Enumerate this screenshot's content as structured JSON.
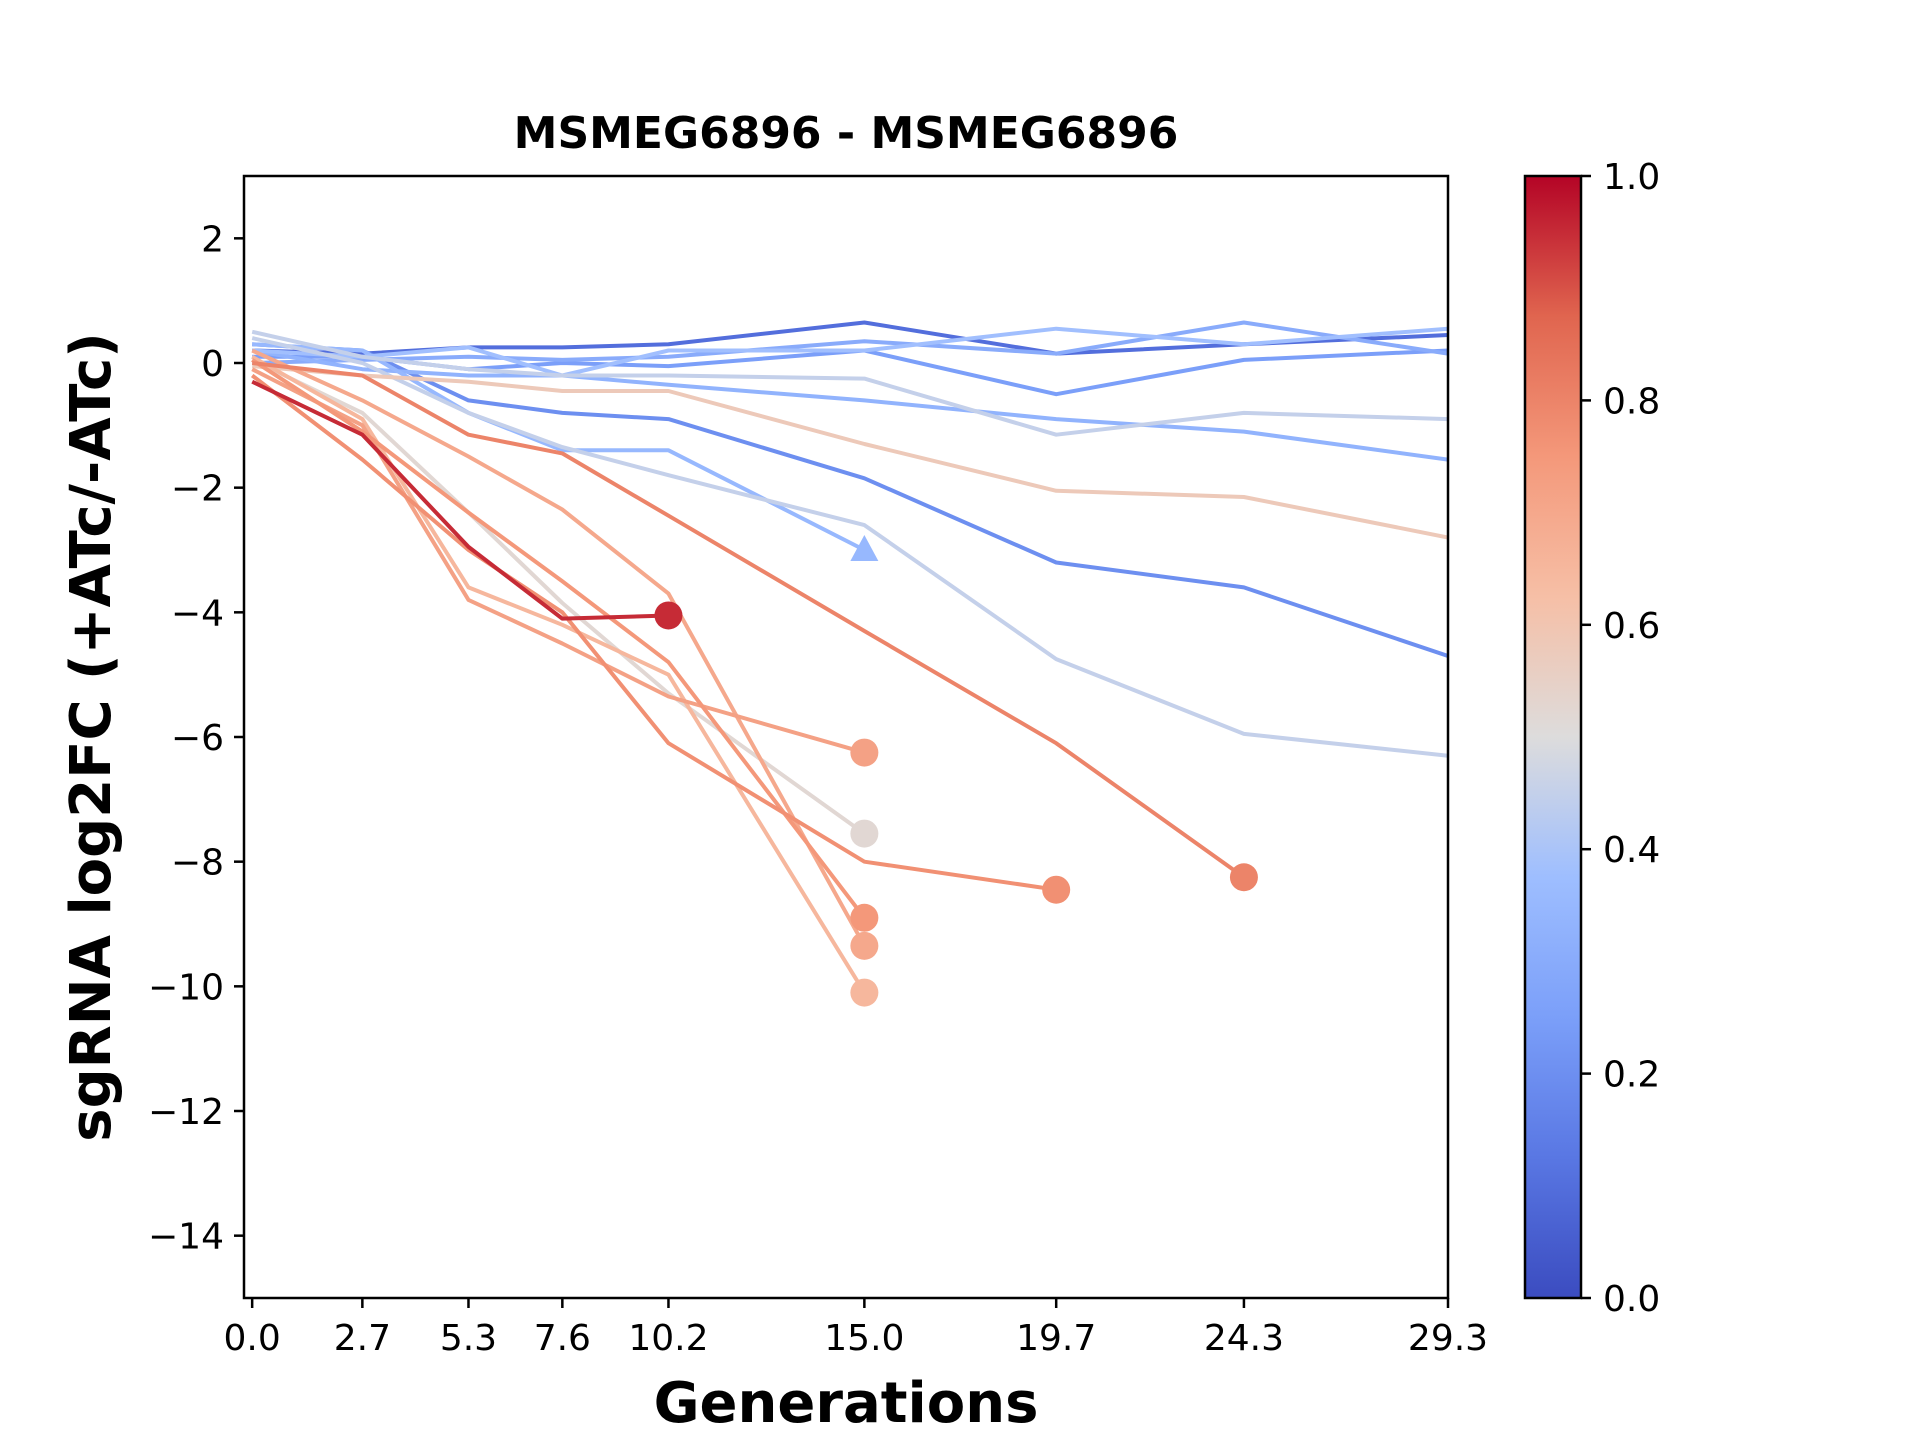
{
  "chart_data": {
    "type": "line",
    "title": "MSMEG6896 - MSMEG6896",
    "xlabel": "Generations",
    "ylabel": "sgRNA log2FC (+ATc/-ATc)",
    "xlim": [
      -0.2,
      29.3
    ],
    "ylim": [
      -15,
      3
    ],
    "xticks": [
      "0.0",
      "2.7",
      "5.3",
      "7.6",
      "10.2",
      "15.0",
      "19.7",
      "24.3",
      "29.3"
    ],
    "yticks": [
      "2",
      "0",
      "−2",
      "−4",
      "−6",
      "−8",
      "−10",
      "−12",
      "−14"
    ],
    "ytick_values": [
      2,
      0,
      -2,
      -4,
      -6,
      -8,
      -10,
      -12,
      -14
    ],
    "grid": false,
    "legend": "none",
    "colorbar": {
      "colormap": "coolwarm",
      "range": [
        0,
        1
      ],
      "ticks": [
        "0.0",
        "0.2",
        "0.4",
        "0.6",
        "0.8",
        "1.0"
      ],
      "tick_values": [
        0,
        0.2,
        0.4,
        0.6,
        0.8,
        1.0
      ]
    },
    "series": [
      {
        "value": 0.1,
        "x": [
          0,
          2.7,
          5.3,
          7.6,
          10.2,
          15.0,
          19.7,
          24.3,
          29.3
        ],
        "y": [
          0.2,
          0.15,
          0.25,
          0.25,
          0.3,
          0.65,
          0.15,
          0.3,
          0.45
        ],
        "end_marker": "none"
      },
      {
        "value": 0.2,
        "x": [
          0,
          2.7,
          5.3,
          7.6,
          10.2,
          15.0,
          19.7,
          24.3,
          29.3
        ],
        "y": [
          0.3,
          0.2,
          -0.6,
          -0.8,
          -0.9,
          -1.85,
          -3.2,
          -3.6,
          -4.7
        ],
        "end_marker": "none"
      },
      {
        "value": 0.25,
        "x": [
          0,
          2.7,
          5.3,
          7.6,
          10.2,
          15.0,
          19.7,
          24.3,
          29.3
        ],
        "y": [
          0.1,
          0.1,
          -0.1,
          0.0,
          -0.05,
          0.2,
          -0.5,
          0.05,
          0.2
        ],
        "end_marker": "none"
      },
      {
        "value": 0.3,
        "x": [
          0,
          2.7,
          5.3,
          7.6,
          10.2,
          15.0,
          19.7,
          24.3,
          29.3
        ],
        "y": [
          0.0,
          0.05,
          0.1,
          0.05,
          0.1,
          0.35,
          0.15,
          0.65,
          0.15
        ],
        "end_marker": "none"
      },
      {
        "value": 0.33,
        "x": [
          0,
          2.7,
          5.3,
          7.6,
          10.2,
          15.0,
          19.7,
          24.3,
          29.3
        ],
        "y": [
          0.2,
          -0.1,
          -0.2,
          -0.2,
          -0.35,
          -0.6,
          -0.9,
          -1.1,
          -1.55
        ],
        "end_marker": "none"
      },
      {
        "value": 0.35,
        "x": [
          0,
          2.7,
          5.3,
          7.6,
          10.2,
          15.0
        ],
        "y": [
          0.3,
          0.2,
          -0.8,
          -1.4,
          -1.4,
          -3.0
        ],
        "end_marker": "triangle"
      },
      {
        "value": 0.38,
        "x": [
          0,
          2.7,
          5.3,
          7.6,
          10.2,
          15.0,
          19.7,
          24.3,
          29.3
        ],
        "y": [
          0.2,
          0.1,
          0.25,
          -0.2,
          0.2,
          0.2,
          0.55,
          0.3,
          0.55
        ],
        "end_marker": "none"
      },
      {
        "value": 0.45,
        "x": [
          0,
          2.7,
          5.3,
          7.6,
          10.2,
          15.0,
          19.7,
          24.3,
          29.3
        ],
        "y": [
          0.5,
          0.1,
          -0.1,
          -0.2,
          -0.2,
          -0.25,
          -1.15,
          -0.8,
          -0.9
        ],
        "end_marker": "none"
      },
      {
        "value": 0.45,
        "x": [
          0,
          2.7,
          5.3,
          7.6,
          10.2,
          15.0,
          19.7,
          24.3,
          29.3
        ],
        "y": [
          0.4,
          0.0,
          -0.8,
          -1.35,
          -1.8,
          -2.6,
          -4.75,
          -5.95,
          -6.3
        ],
        "end_marker": "none"
      },
      {
        "value": 0.58,
        "x": [
          0,
          2.7,
          5.3,
          7.6,
          10.2,
          15.0,
          19.7,
          24.3,
          29.3
        ],
        "y": [
          -0.05,
          -0.2,
          -0.3,
          -0.45,
          -0.45,
          -1.3,
          -2.05,
          -2.15,
          -2.8
        ],
        "end_marker": "none"
      },
      {
        "value": 0.52,
        "x": [
          0,
          2.7,
          5.3,
          7.6,
          10.2,
          15.0
        ],
        "y": [
          0.05,
          -0.8,
          -2.4,
          -3.85,
          -5.3,
          -7.55
        ],
        "end_marker": "circle"
      },
      {
        "value": 0.65,
        "x": [
          0,
          2.7,
          5.3,
          7.6,
          10.2,
          15.0
        ],
        "y": [
          0.1,
          -0.9,
          -3.6,
          -4.2,
          -5.0,
          -10.1
        ],
        "end_marker": "circle"
      },
      {
        "value": 0.7,
        "x": [
          0,
          2.7,
          5.3,
          7.6,
          10.2,
          15.0
        ],
        "y": [
          0.2,
          -0.6,
          -1.5,
          -2.35,
          -3.7,
          -9.35
        ],
        "end_marker": "circle"
      },
      {
        "value": 0.72,
        "x": [
          0,
          2.7,
          5.3,
          7.6,
          10.2,
          15.0
        ],
        "y": [
          -0.1,
          -1.0,
          -3.8,
          -4.5,
          -5.35,
          -6.25
        ],
        "end_marker": "circle"
      },
      {
        "value": 0.75,
        "x": [
          0,
          2.7,
          5.3,
          7.6,
          10.2,
          15.0
        ],
        "y": [
          0.05,
          -1.1,
          -2.4,
          -3.5,
          -4.8,
          -8.9
        ],
        "end_marker": "circle"
      },
      {
        "value": 0.77,
        "x": [
          0,
          2.7,
          5.3,
          7.6,
          10.2,
          15.0,
          19.7
        ],
        "y": [
          -0.2,
          -1.55,
          -3.0,
          -4.0,
          -6.1,
          -8.0,
          -8.45
        ],
        "end_marker": "circle"
      },
      {
        "value": 0.8,
        "x": [
          0,
          2.7,
          5.3,
          7.6,
          10.2,
          15.0,
          19.7,
          24.3
        ],
        "y": [
          0.0,
          -0.2,
          -1.15,
          -1.45,
          -2.45,
          -4.3,
          -6.1,
          -8.25
        ],
        "end_marker": "circle"
      },
      {
        "value": 0.95,
        "x": [
          0,
          2.7,
          5.3,
          7.6,
          10.2
        ],
        "y": [
          -0.3,
          -1.15,
          -2.95,
          -4.1,
          -4.05
        ],
        "end_marker": "circle"
      }
    ]
  }
}
